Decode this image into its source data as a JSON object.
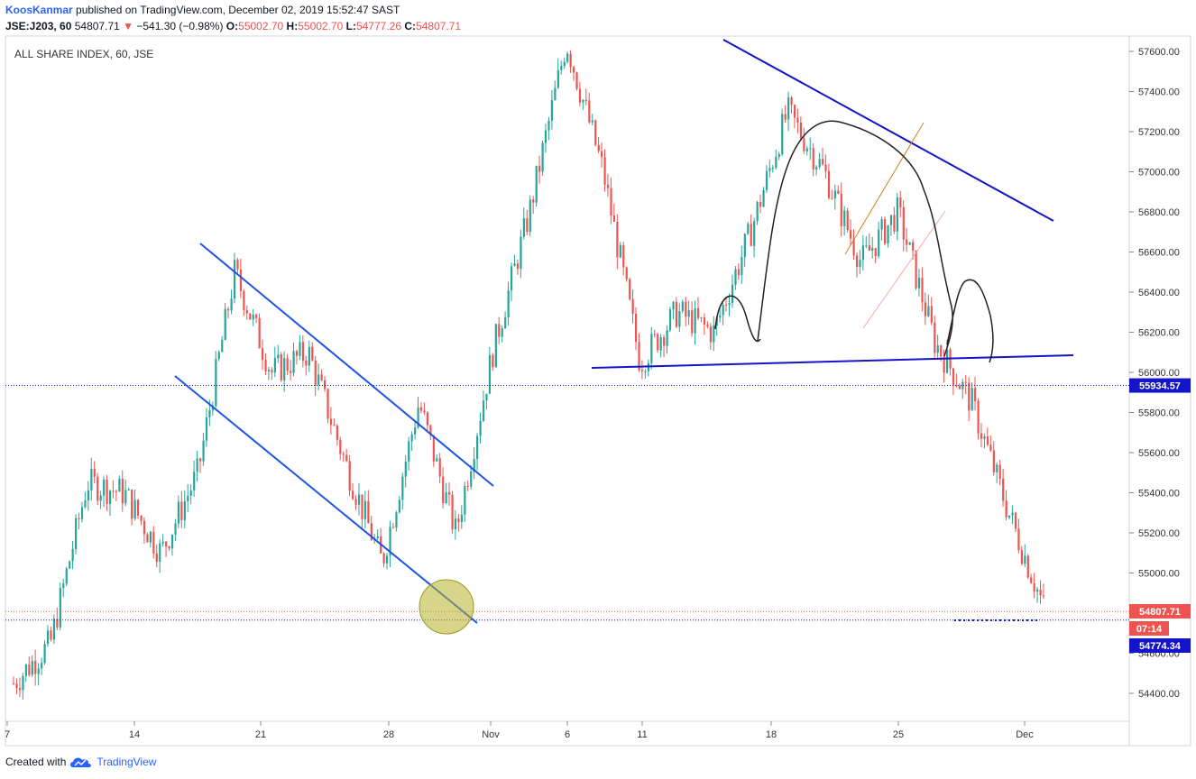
{
  "header": {
    "author": "KoosKanmar",
    "published_text": "published on TradingView.com, December 02, 2019 15:52:47 SAST",
    "symbol": "JSE:J203, 60",
    "last": "54807.71",
    "change_arrow": "▼",
    "change": "−541.30 (−0.98%)",
    "o_label": "O:",
    "o_value": "55002.70",
    "h_label": "H:",
    "h_value": "55002.70",
    "l_label": "L:",
    "l_value": "54777.26",
    "c_label": "C:",
    "c_value": "54807.71"
  },
  "chart_title": "ALL SHARE INDEX, 60, JSE",
  "footer": {
    "created_with": "Created with",
    "brand": "TradingView",
    "logo_icon": "tradingview-cloud-icon"
  },
  "colors": {
    "up": "#26a69a",
    "down": "#ef5350",
    "trendline": "#1e53e5",
    "trendline_dark": "#1414c8",
    "curve": "#222222",
    "highlight": "#b5b22a",
    "accent": "#2962ff"
  },
  "chart_data": {
    "type": "candlestick",
    "y_axis": {
      "range": [
        54250,
        57670
      ],
      "ticks": [
        "57600.00",
        "57400.00",
        "57200.00",
        "57000.00",
        "56800.00",
        "56600.00",
        "56400.00",
        "56200.00",
        "56000.00",
        "55800.00",
        "55600.00",
        "55400.00",
        "55200.00",
        "55000.00",
        "54800.00",
        "54600.00",
        "54400.00"
      ]
    },
    "x_axis": {
      "ticks": [
        "7",
        "14",
        "21",
        "28",
        "Nov",
        "6",
        "11",
        "18",
        "25",
        "Dec"
      ]
    },
    "price_labels": [
      {
        "value": "55934.57"
      },
      {
        "value": "54807.71"
      },
      {
        "value": "07:14"
      },
      {
        "value": "54774.34"
      }
    ],
    "horizontal_levels": [
      55934.57,
      54807.71,
      54774.34
    ],
    "candles_summary": "hourly ALL SHARE INDEX candles approx. Oct 7 – Dec 2 2019",
    "key_closes": [
      {
        "date": "Oct 7",
        "value": 54450
      },
      {
        "date": "Oct 10",
        "value": 54650
      },
      {
        "date": "Oct 11",
        "value": 55450
      },
      {
        "date": "Oct 14",
        "value": 55400
      },
      {
        "date": "Oct 16",
        "value": 55100
      },
      {
        "date": "Oct 18",
        "value": 55500
      },
      {
        "date": "Oct 19",
        "value": 56500
      },
      {
        "date": "Oct 21",
        "value": 56000
      },
      {
        "date": "Oct 23",
        "value": 56100
      },
      {
        "date": "Oct 25",
        "value": 55550
      },
      {
        "date": "Oct 28",
        "value": 55050
      },
      {
        "date": "Oct 29",
        "value": 55850
      },
      {
        "date": "Oct 31",
        "value": 55200
      },
      {
        "date": "Nov 1",
        "value": 56100
      },
      {
        "date": "Nov 4",
        "value": 56800
      },
      {
        "date": "Nov 6",
        "value": 57650
      },
      {
        "date": "Nov 8",
        "value": 57000
      },
      {
        "date": "Nov 11",
        "value": 56050
      },
      {
        "date": "Nov 13",
        "value": 56300
      },
      {
        "date": "Nov 15",
        "value": 56200
      },
      {
        "date": "Nov 18",
        "value": 56700
      },
      {
        "date": "Nov 20",
        "value": 57300
      },
      {
        "date": "Nov 21",
        "value": 57000
      },
      {
        "date": "Nov 22",
        "value": 56550
      },
      {
        "date": "Nov 25",
        "value": 56800
      },
      {
        "date": "Nov 27",
        "value": 56150
      },
      {
        "date": "Nov 28",
        "value": 55850
      },
      {
        "date": "Nov 29",
        "value": 55300
      },
      {
        "date": "Dec 2",
        "value": 54807.71
      }
    ]
  }
}
